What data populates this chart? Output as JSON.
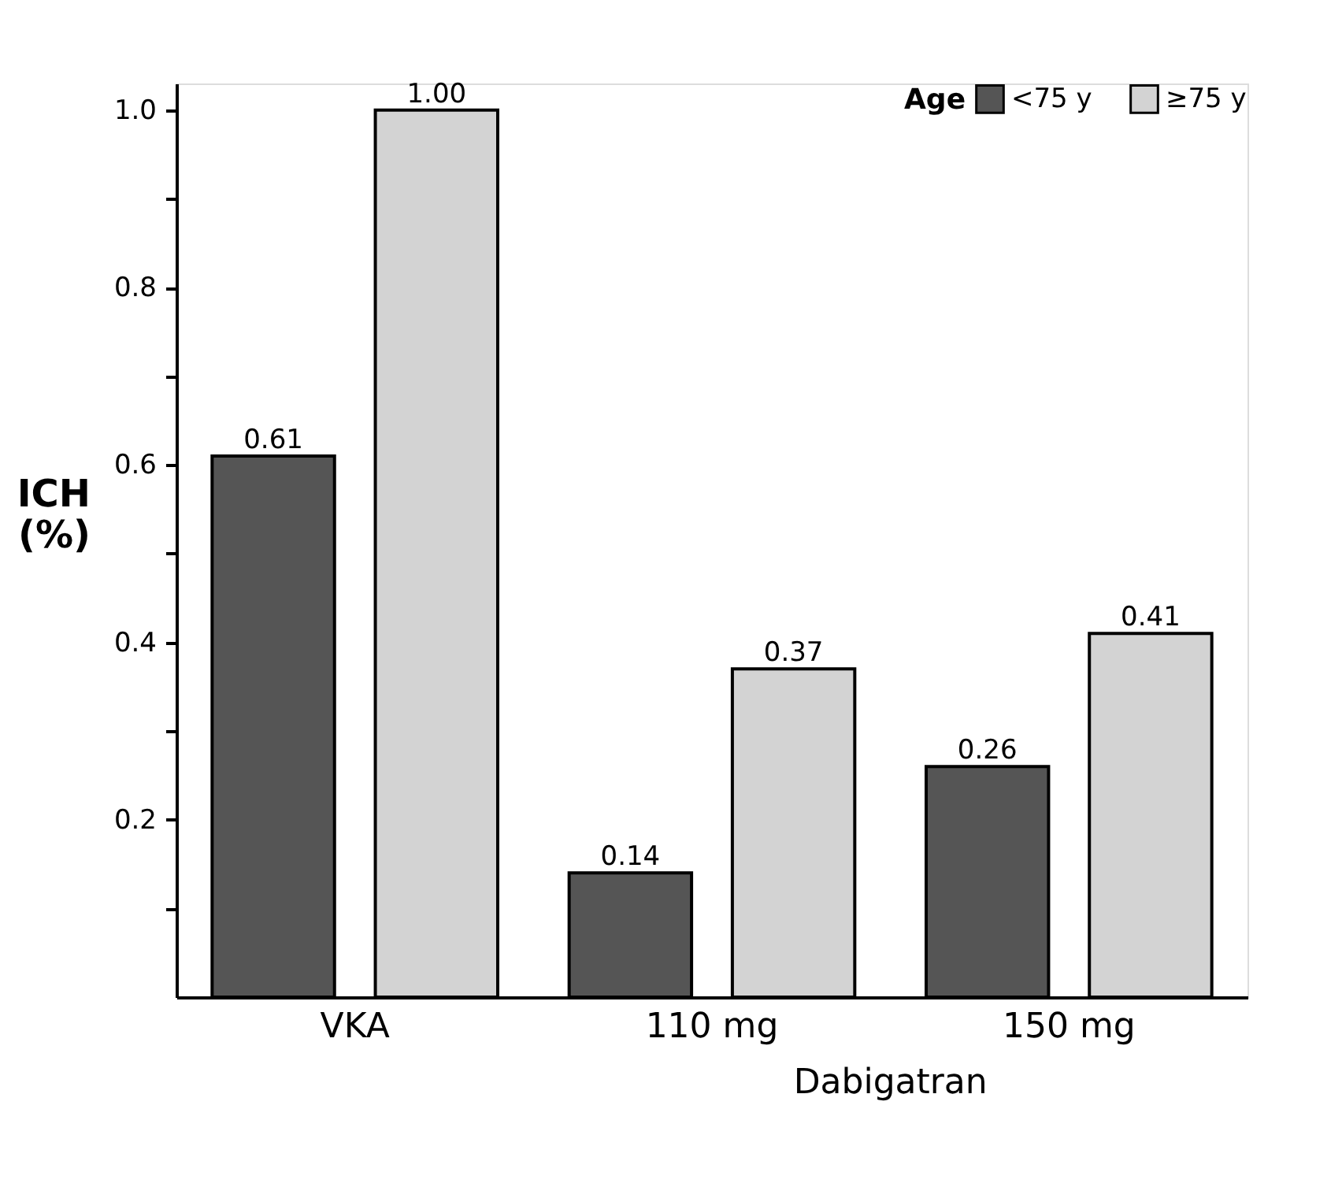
{
  "chart_data": {
    "type": "bar",
    "categories": [
      "VKA",
      "110 mg",
      "150 mg"
    ],
    "xlabel": "Dabigatran",
    "ylabel": "ICH (%)",
    "legend_title": "Age",
    "series": [
      {
        "name": "<75 y",
        "color": "#555555",
        "values": [
          0.61,
          0.14,
          0.26
        ],
        "value_labels": [
          "0.61",
          "0.14",
          "0.26"
        ]
      },
      {
        "name": "≥75 y",
        "color": "#d3d3d3",
        "values": [
          1.0,
          0.37,
          0.41
        ],
        "value_labels": [
          "1.00",
          "0.37",
          "0.41"
        ]
      }
    ],
    "ylim": [
      0,
      1.03
    ],
    "yticks": [
      {
        "value": 0.1,
        "label": null
      },
      0.2,
      {
        "value": 0.3,
        "label": null
      },
      0.4,
      {
        "value": 0.5,
        "label": null
      },
      0.6,
      {
        "value": 0.7,
        "label": null
      },
      0.8,
      {
        "value": 0.9,
        "label": null
      },
      {
        "value": 1.0,
        "label": "1.0"
      }
    ],
    "grid": false,
    "legend": "top right"
  }
}
